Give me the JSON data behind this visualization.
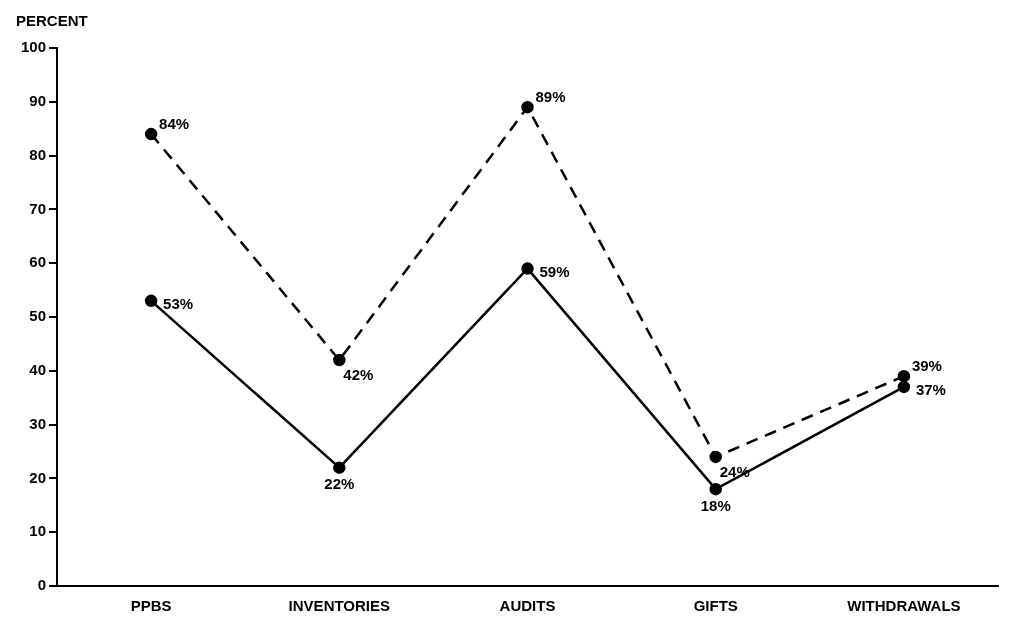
{
  "chart_data": {
    "type": "line",
    "ylabel": "PERCENT",
    "categories": [
      "PPBS",
      "INVENTORIES",
      "AUDITS",
      "GIFTS",
      "WITHDRAWALS"
    ],
    "series": [
      {
        "color": "#000000",
        "line_style": "dashed",
        "values": [
          84,
          42,
          89,
          24,
          39
        ],
        "value_labels": [
          "84%",
          "42%",
          "89%",
          "24%",
          "39%"
        ]
      },
      {
        "color": "#000000",
        "line_style": "solid",
        "values": [
          53,
          22,
          59,
          18,
          37
        ],
        "value_labels": [
          "53%",
          "22%",
          "59%",
          "18%",
          "37%"
        ]
      }
    ],
    "ylim": [
      0,
      100
    ],
    "yticks": [
      0,
      10,
      20,
      30,
      40,
      50,
      60,
      70,
      80,
      90,
      100
    ],
    "grid": false,
    "legend": false,
    "marker": "circle"
  }
}
